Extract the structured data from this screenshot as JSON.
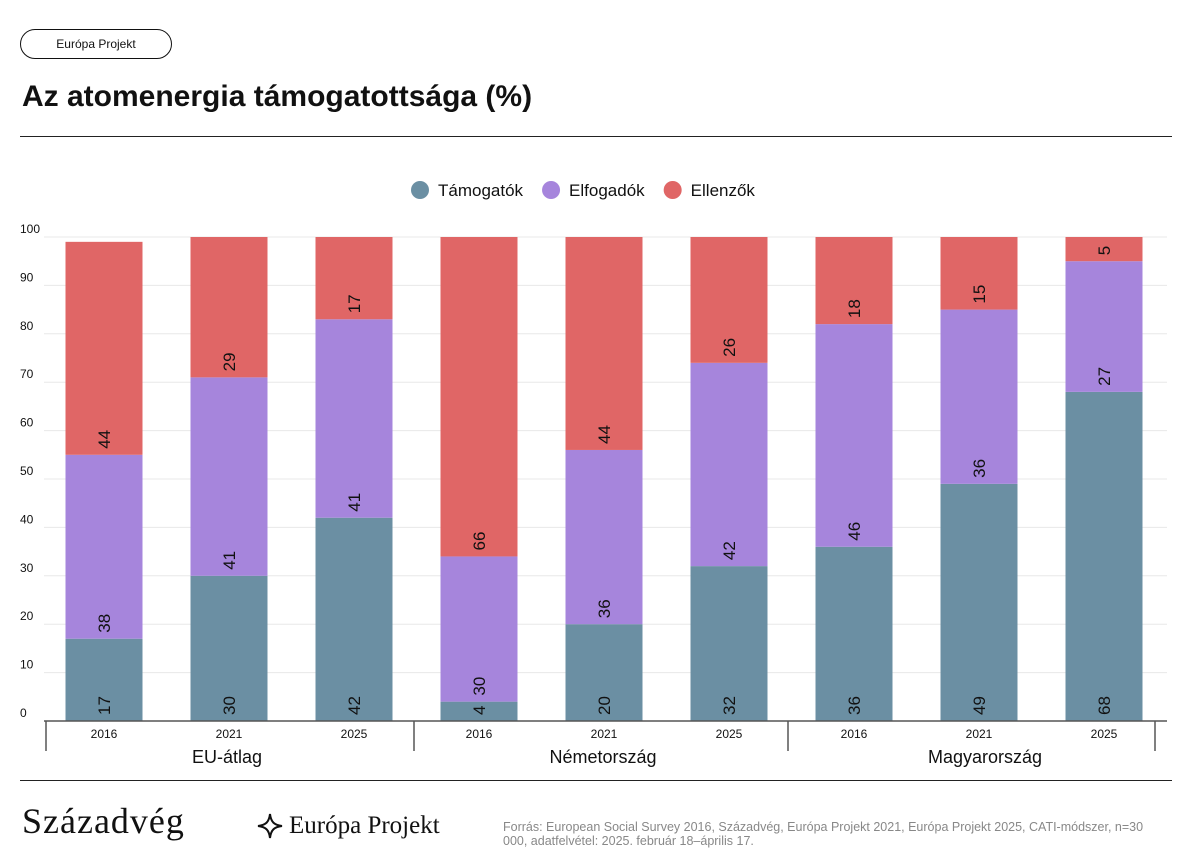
{
  "header": {
    "pill_label": "Európa Projekt",
    "title": "Az atomenergia támogatottsága (%)"
  },
  "chart_data": {
    "type": "bar",
    "stacked": true,
    "title": "Az atomenergia támogatottsága (%)",
    "ylim": [
      0,
      100
    ],
    "yticks": [
      0,
      10,
      20,
      30,
      40,
      50,
      60,
      70,
      80,
      90,
      100
    ],
    "groups": [
      {
        "label": "EU-átlag",
        "years": [
          "2016",
          "2021",
          "2025"
        ]
      },
      {
        "label": "Németország",
        "years": [
          "2016",
          "2021",
          "2025"
        ]
      },
      {
        "label": "Magyarország",
        "years": [
          "2016",
          "2021",
          "2025"
        ]
      }
    ],
    "series": [
      {
        "name": "Támogatók",
        "color": "#6b8fa3",
        "values": [
          17,
          30,
          42,
          4,
          20,
          32,
          36,
          49,
          68
        ]
      },
      {
        "name": "Elfogadók",
        "color": "#a685dc",
        "values": [
          38,
          41,
          41,
          30,
          36,
          42,
          46,
          36,
          27
        ]
      },
      {
        "name": "Ellenzők",
        "color": "#e06666",
        "values": [
          44,
          29,
          17,
          66,
          44,
          26,
          18,
          15,
          5
        ]
      }
    ],
    "legend_position": "top-center"
  },
  "footer": {
    "logo_szazadveg": "Századvég",
    "logo_europa": "Európa Projekt",
    "source": "Forrás: European Social Survey 2016, Századvég, Európa Projekt 2021, Európa Projekt 2025, CATI-módszer, n=30 000, adatfelvétel: 2025. február 18–április 17."
  }
}
